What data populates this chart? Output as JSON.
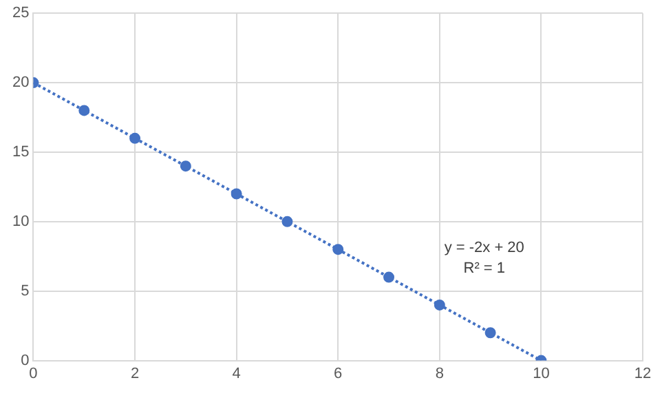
{
  "chart_data": {
    "type": "scatter",
    "xlim": [
      0,
      12
    ],
    "xticks": [
      0,
      2,
      4,
      6,
      8,
      10,
      12
    ],
    "ylim": [
      0,
      25
    ],
    "yticks": [
      0,
      5,
      10,
      15,
      20,
      25
    ],
    "grid": true,
    "legend": false,
    "series": [
      {
        "type": "scatter",
        "color": "#4472c4",
        "marker": "circle",
        "x": [
          0,
          1,
          2,
          3,
          4,
          5,
          6,
          7,
          8,
          9,
          10
        ],
        "values": [
          20,
          18,
          16,
          14,
          12,
          10,
          8,
          6,
          4,
          2,
          0
        ]
      },
      {
        "type": "line",
        "color": "#4472c4",
        "marker": "none",
        "line_style": "dotted",
        "x": [
          0,
          10
        ],
        "values": [
          20,
          0
        ]
      }
    ],
    "annotations": [
      "y = -2x + 20",
      "R² = 1"
    ]
  }
}
